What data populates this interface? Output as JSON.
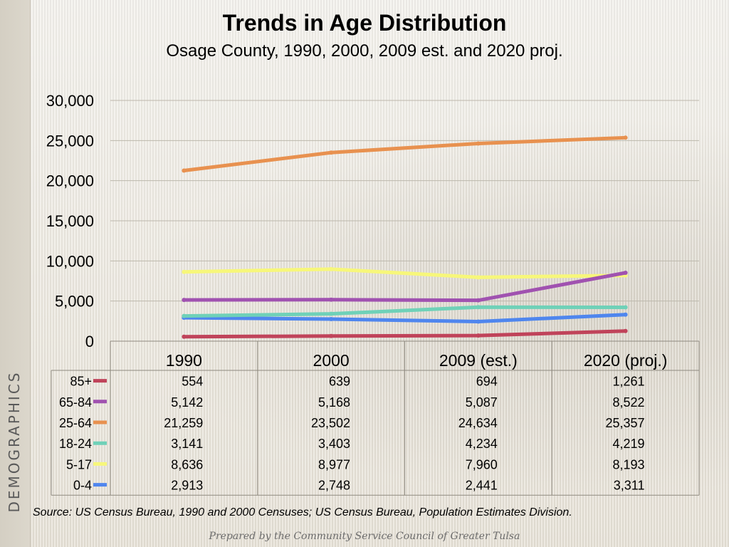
{
  "slide": {
    "side_label": "DEMOGRAPHICS",
    "source": "Source:  US Census Bureau, 1990 and 2000 Censuses; US Census Bureau, Population Estimates Division.",
    "footer": "Prepared by the Community Service Council of Greater Tulsa"
  },
  "chart_data": {
    "type": "line",
    "title": "Trends in Age Distribution",
    "subtitle": "Osage County, 1990, 2000, 2009 est. and 2020 proj.",
    "categories": [
      "1990",
      "2000",
      "2009 (est.)",
      "2020 (proj.)"
    ],
    "ylim": [
      0,
      30000
    ],
    "yticks": [
      0,
      5000,
      10000,
      15000,
      20000,
      25000,
      30000
    ],
    "ytick_labels": [
      "0",
      "5,000",
      "10,000",
      "15,000",
      "20,000",
      "25,000",
      "30,000"
    ],
    "grid": true,
    "legend": "data-table",
    "series": [
      {
        "name": "85+",
        "color": "#c0435a",
        "values": [
          554,
          639,
          694,
          1261
        ],
        "labels": [
          "554",
          "639",
          "694",
          "1,261"
        ],
        "icon": "book-icon"
      },
      {
        "name": "65-84",
        "color": "#a052b0",
        "values": [
          5142,
          5168,
          5087,
          8522
        ],
        "labels": [
          "5,142",
          "5,168",
          "5,087",
          "8,522"
        ],
        "icon": "bell-icon"
      },
      {
        "name": "25-64",
        "color": "#e8914f",
        "values": [
          21259,
          23502,
          24634,
          25357
        ],
        "labels": [
          "21,259",
          "23,502",
          "24,634",
          "25,357"
        ],
        "icon": "glasses-icon"
      },
      {
        "name": "18-24",
        "color": "#6fd1b8",
        "values": [
          3141,
          3403,
          4234,
          4219
        ],
        "labels": [
          "3,141",
          "3,403",
          "4,234",
          "4,219"
        ],
        "icon": "key-icon"
      },
      {
        "name": "5-17",
        "color": "#f7f77a",
        "values": [
          8636,
          8977,
          7960,
          8193
        ],
        "labels": [
          "8,636",
          "8,977",
          "7,960",
          "8,193"
        ],
        "icon": "book-icon"
      },
      {
        "name": "0-4",
        "color": "#4f86ee",
        "values": [
          2913,
          2748,
          2441,
          3311
        ],
        "labels": [
          "2,913",
          "2,748",
          "2,441",
          "3,311"
        ],
        "icon": "none"
      }
    ]
  }
}
